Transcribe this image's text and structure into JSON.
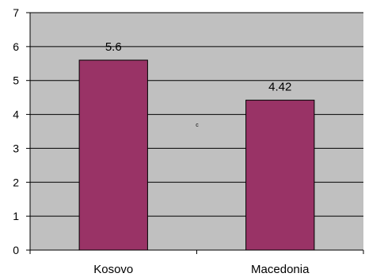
{
  "chart_data": {
    "type": "bar",
    "categories": [
      "Kosovo",
      "Macedonia"
    ],
    "values": [
      5.6,
      4.42
    ],
    "data_labels": [
      "5.6",
      "4.42"
    ],
    "y_ticks": [
      "0",
      "1",
      "2",
      "3",
      "4",
      "5",
      "6",
      "7"
    ],
    "ylim": [
      0,
      7
    ],
    "grid": true,
    "legend": "none",
    "annotation": "c",
    "colors": {
      "bar": "#993366",
      "bar_border": "#000000",
      "plot_background": "#c0c0c0",
      "gridline": "#000000"
    }
  }
}
